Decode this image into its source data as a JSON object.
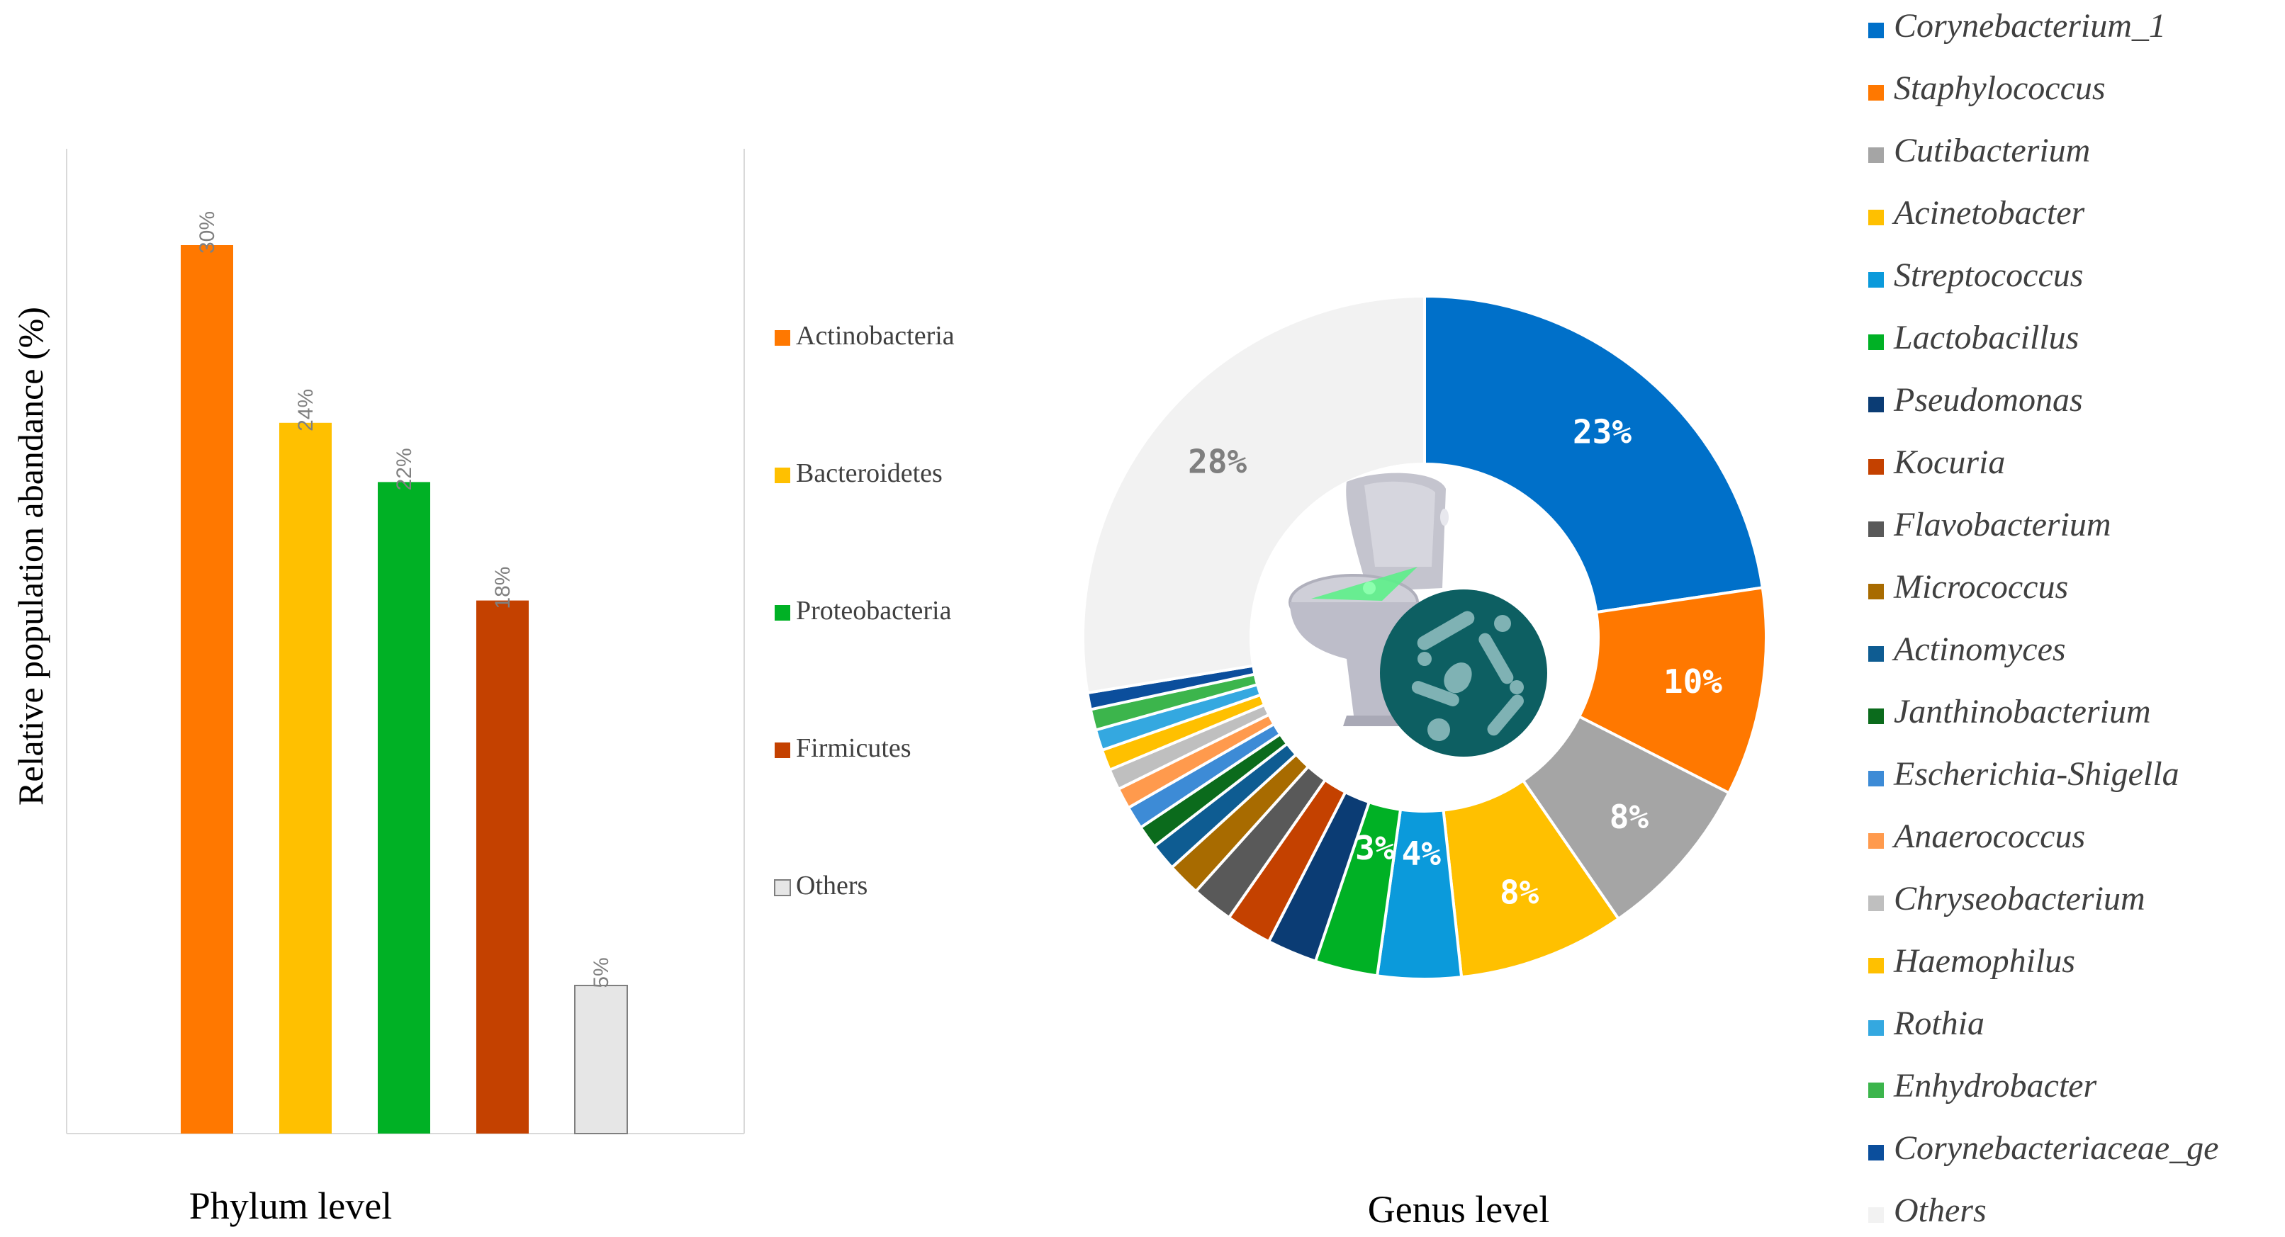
{
  "chart_data": [
    {
      "type": "bar",
      "xlabel": "Phylum level",
      "ylabel": "Relative population abandance (%)",
      "categories": [
        "Actinobacteria",
        "Bacteroidetes",
        "Proteobacteria",
        "Firmicutes",
        "Others"
      ],
      "values": [
        30,
        24,
        22,
        18,
        5
      ],
      "data_labels": [
        "30%",
        "24%",
        "22%",
        "18%",
        "5%"
      ],
      "colors": [
        "#FF7800",
        "#FFC000",
        "#00B125",
        "#C44100",
        "#E6E6E6"
      ],
      "ylim": [
        0,
        32
      ],
      "grid": false,
      "legend_position": "right"
    },
    {
      "type": "pie",
      "variant": "donut",
      "xlabel": "Genus level",
      "categories": [
        "Corynebacterium_1",
        "Staphylococcus",
        "Cutibacterium",
        "Acinetobacter",
        "Streptococcus",
        "Lactobacillus",
        "Pseudomonas",
        "Kocuria",
        "Flavobacterium",
        "Micrococcus",
        "Actinomyces",
        "Janthinobacterium",
        "Escherichia-Shigella",
        "Anaerococcus",
        "Chryseobacterium",
        "Haemophilus",
        "Rothia",
        "Enhydrobacter",
        "Corynebacteriaceae_ge",
        "Others"
      ],
      "values": [
        23,
        10,
        8,
        8,
        4,
        3,
        2.4,
        2.2,
        2,
        1.6,
        1.3,
        1.1,
        1.1,
        1,
        1,
        1,
        1,
        1,
        0.8,
        28
      ],
      "data_labels": [
        "23%",
        "10%",
        "8%",
        "8%",
        "4%",
        "3%",
        "",
        "",
        "",
        "",
        "",
        "",
        "",
        "",
        "",
        "",
        "",
        "",
        "",
        "28%"
      ],
      "colors": [
        "#0070C9",
        "#FF7800",
        "#A5A5A5",
        "#FFC000",
        "#0B9ADB",
        "#00B125",
        "#0B3C74",
        "#C44100",
        "#595959",
        "#A86B00",
        "#0E5C92",
        "#0B6B1C",
        "#3D8BD6",
        "#FF9A4D",
        "#BFBFBF",
        "#FFC000",
        "#34A8E0",
        "#3CB54C",
        "#0B4E9C",
        "#F2F2F2"
      ],
      "legend_position": "right",
      "icon": "toilet-bacteria-icon"
    }
  ]
}
